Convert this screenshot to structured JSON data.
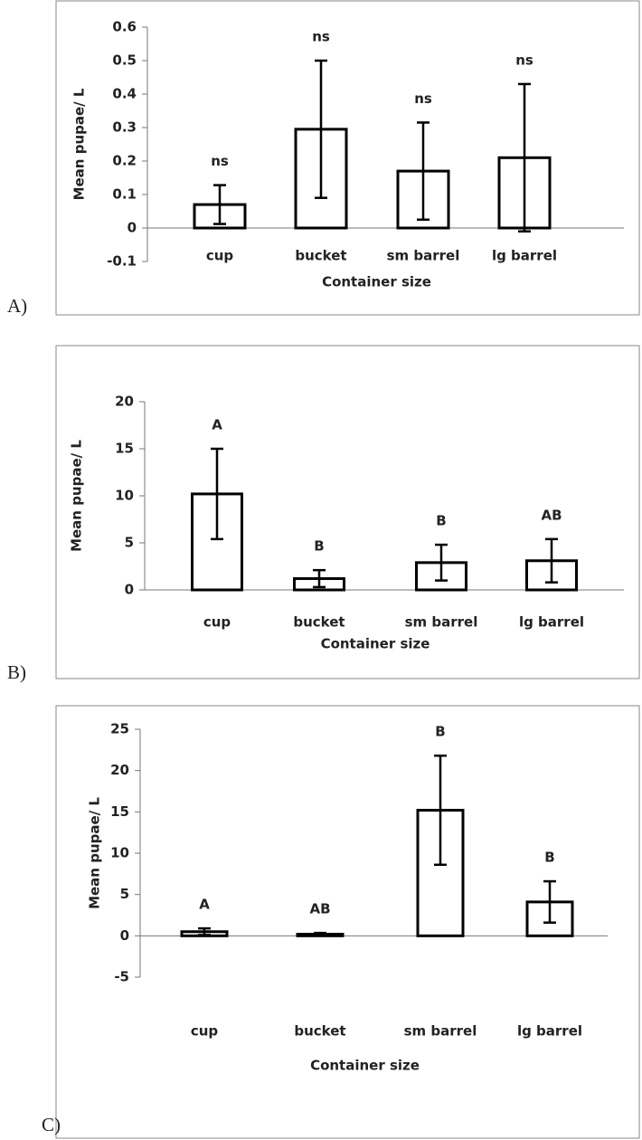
{
  "chart_data": [
    {
      "type": "bar",
      "panel_label": "A)",
      "y_label": "Mean pupae/ L",
      "x_label": "Container size",
      "categories": [
        "cup",
        "bucket",
        "sm barrel",
        "lg barrel"
      ],
      "values": [
        0.07,
        0.295,
        0.17,
        0.21
      ],
      "errors": [
        0.058,
        0.205,
        0.145,
        0.22
      ],
      "annotations": [
        "ns",
        "ns",
        "ns",
        "ns"
      ],
      "color": "#000000",
      "ylim": [
        -0.1,
        0.6
      ],
      "yticks": [
        -0.1,
        0,
        0.1,
        0.2,
        0.3,
        0.4,
        0.5,
        0.6
      ]
    },
    {
      "type": "bar",
      "panel_label": "B)",
      "y_label": "Mean pupae/ L",
      "x_label": "Container size",
      "categories": [
        "cup",
        "bucket",
        "sm barrel",
        "lg barrel"
      ],
      "values": [
        10.2,
        1.2,
        2.9,
        3.1
      ],
      "errors": [
        4.8,
        0.9,
        1.9,
        2.3
      ],
      "annotations": [
        "A",
        "B",
        "B",
        "AB"
      ],
      "color": "#000000",
      "ylim": [
        0,
        20
      ],
      "yticks": [
        0,
        5,
        10,
        15,
        20
      ]
    },
    {
      "type": "bar",
      "panel_label": "C)",
      "y_label": "Mean pupae/ L",
      "x_label": "Container size",
      "categories": [
        "cup",
        "bucket",
        "sm barrel",
        "lg barrel"
      ],
      "values": [
        0.5,
        0.2,
        15.2,
        4.1
      ],
      "errors": [
        0.4,
        0.15,
        6.6,
        2.5
      ],
      "annotations": [
        "A",
        "AB",
        "B",
        "B"
      ],
      "color": "#000000",
      "ylim": [
        -5,
        25
      ],
      "yticks": [
        -5,
        0,
        5,
        10,
        15,
        20,
        25
      ]
    }
  ]
}
